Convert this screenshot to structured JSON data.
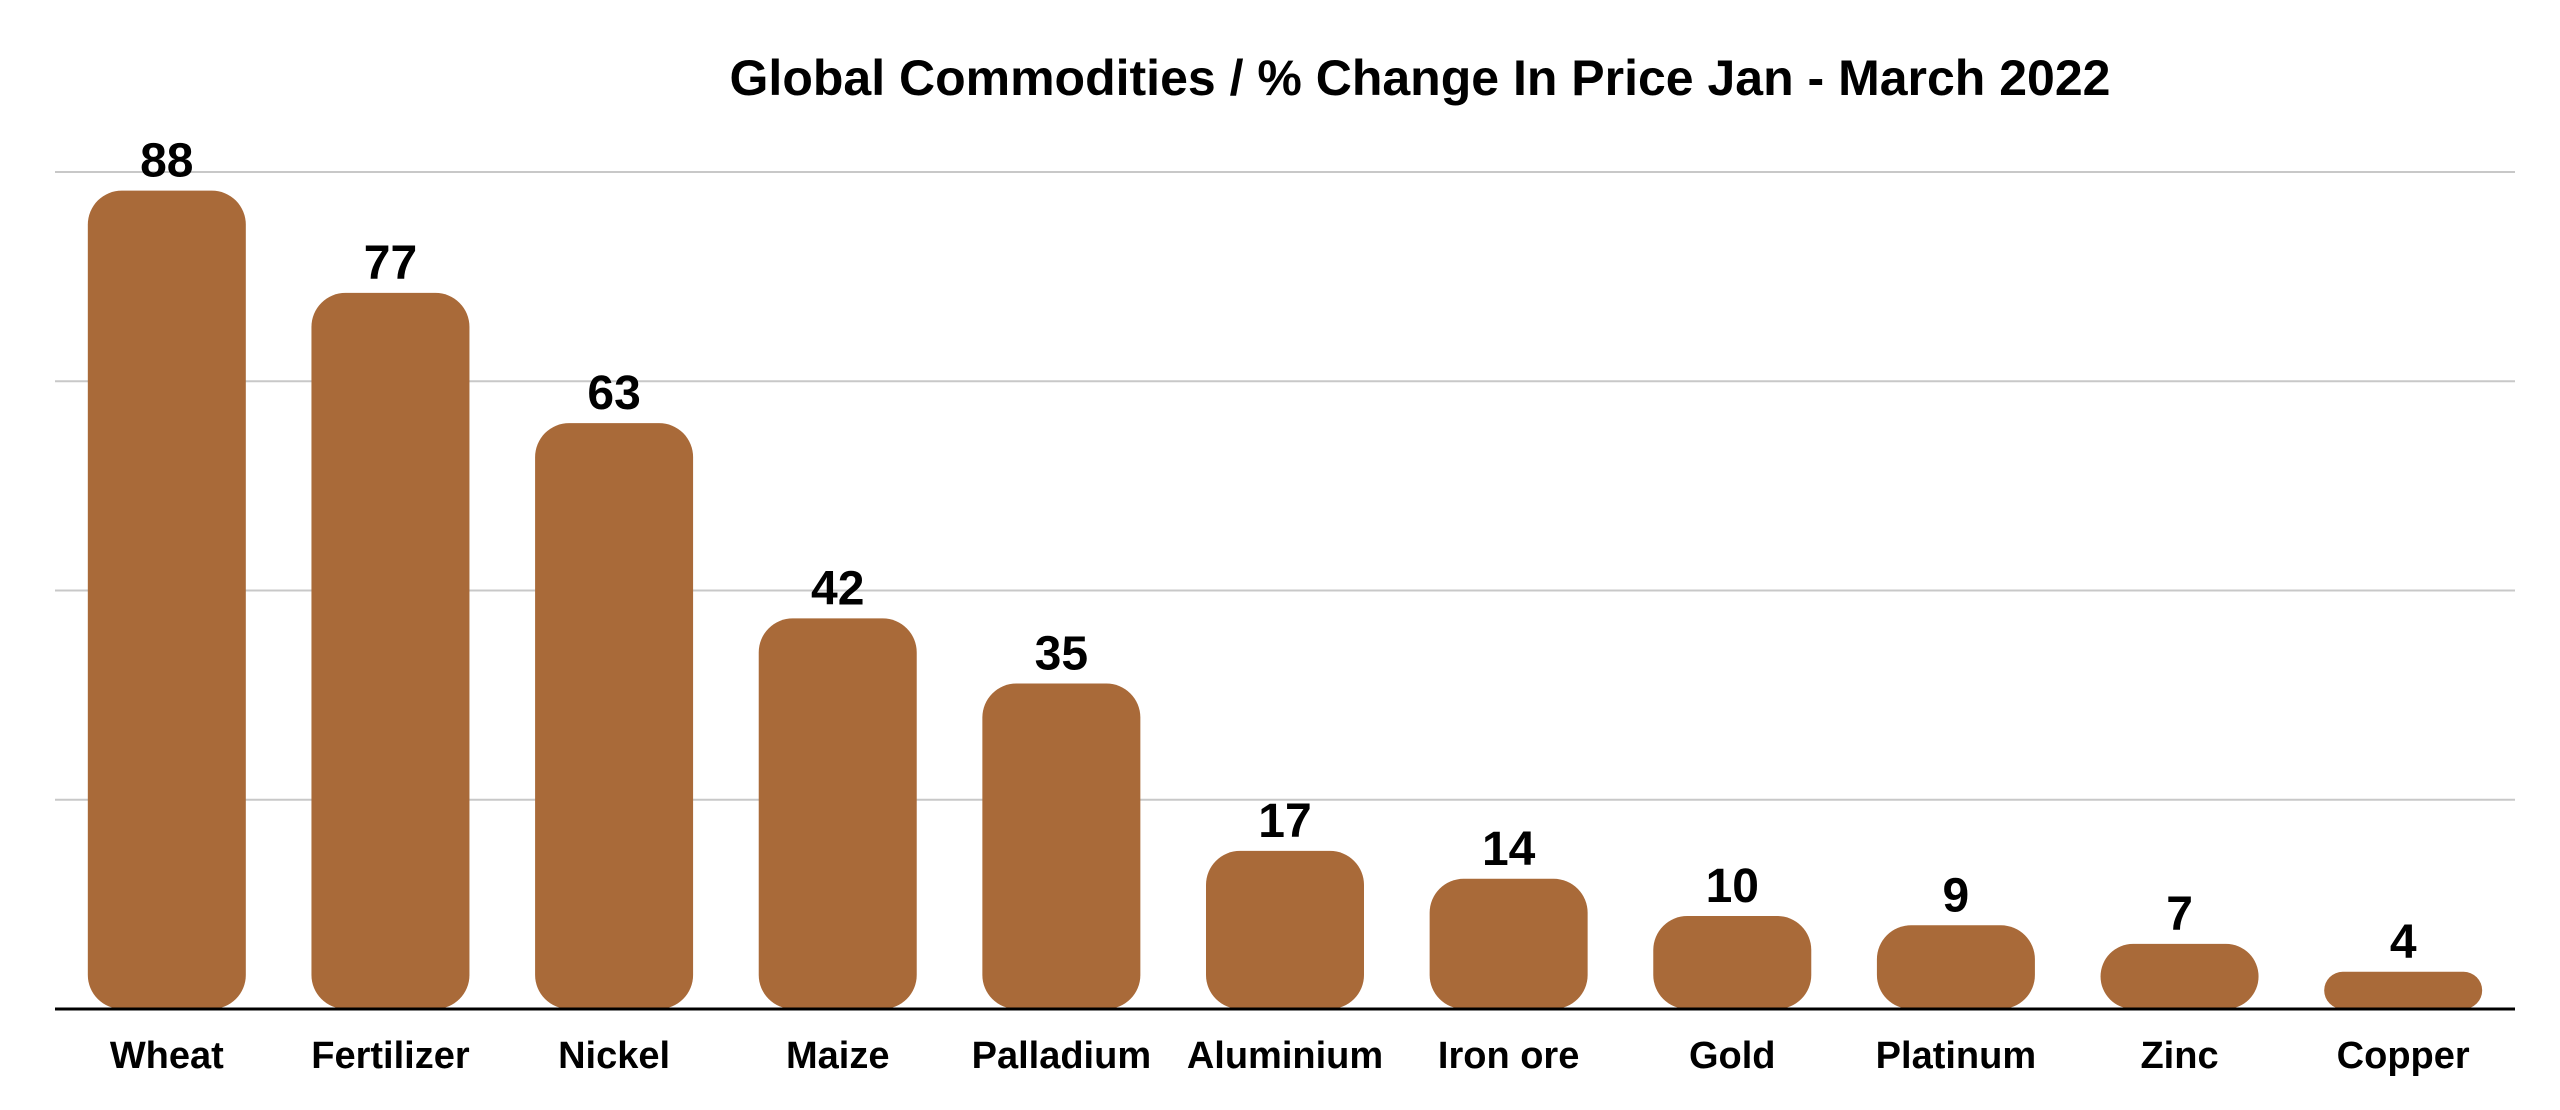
{
  "chart_data": {
    "type": "bar",
    "title": "Global Commodities / % Change In Price Jan - March 2022",
    "xlabel": "",
    "ylabel": "",
    "categories": [
      "Wheat",
      "Fertilizer",
      "Nickel",
      "Maize",
      "Palladium",
      "Aluminium",
      "Iron ore",
      "Gold",
      "Platinum",
      "Zinc",
      "Copper"
    ],
    "values": [
      88,
      77,
      63,
      42,
      35,
      17,
      14,
      10,
      9,
      7,
      4
    ],
    "ylim": [
      0,
      90
    ],
    "gridlines": [
      22.5,
      45,
      67.5,
      90
    ],
    "grid": true,
    "legend": "none",
    "data_labels": true,
    "bar_color": "#A96A39"
  }
}
